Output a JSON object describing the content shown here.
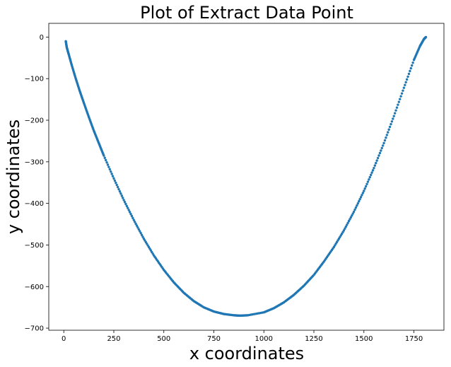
{
  "chart_data": {
    "type": "scatter",
    "title": "Plot of Extract Data Point",
    "xlabel": "x coordinates",
    "ylabel": "y coordinates",
    "xlim": [
      -75,
      1900
    ],
    "ylim": [
      -705,
      33
    ],
    "xticks": [
      0,
      250,
      500,
      750,
      1000,
      1250,
      1500,
      1750
    ],
    "yticks": [
      0,
      -100,
      -200,
      -300,
      -400,
      -500,
      -600,
      -700
    ],
    "grid": false,
    "legend": "none",
    "series": [
      {
        "color": "#1f77b4",
        "points": [
          [
            10,
            -10
          ],
          [
            15,
            -25
          ],
          [
            25,
            -42
          ],
          [
            40,
            -68
          ],
          [
            60,
            -100
          ],
          [
            80,
            -130
          ],
          [
            100,
            -158
          ],
          [
            125,
            -192
          ],
          [
            150,
            -225
          ],
          [
            175,
            -255
          ],
          [
            200,
            -285
          ],
          [
            250,
            -340
          ],
          [
            300,
            -392
          ],
          [
            350,
            -440
          ],
          [
            400,
            -485
          ],
          [
            450,
            -525
          ],
          [
            500,
            -560
          ],
          [
            550,
            -590
          ],
          [
            600,
            -615
          ],
          [
            650,
            -635
          ],
          [
            700,
            -650
          ],
          [
            750,
            -660
          ],
          [
            800,
            -666
          ],
          [
            850,
            -669
          ],
          [
            880,
            -670
          ],
          [
            920,
            -669
          ],
          [
            1000,
            -662
          ],
          [
            1050,
            -652
          ],
          [
            1100,
            -638
          ],
          [
            1150,
            -620
          ],
          [
            1200,
            -598
          ],
          [
            1250,
            -572
          ],
          [
            1300,
            -540
          ],
          [
            1350,
            -505
          ],
          [
            1400,
            -465
          ],
          [
            1450,
            -420
          ],
          [
            1500,
            -370
          ],
          [
            1550,
            -315
          ],
          [
            1600,
            -255
          ],
          [
            1650,
            -190
          ],
          [
            1700,
            -122
          ],
          [
            1750,
            -55
          ],
          [
            1780,
            -22
          ],
          [
            1800,
            -5
          ],
          [
            1810,
            0
          ]
        ]
      }
    ]
  }
}
